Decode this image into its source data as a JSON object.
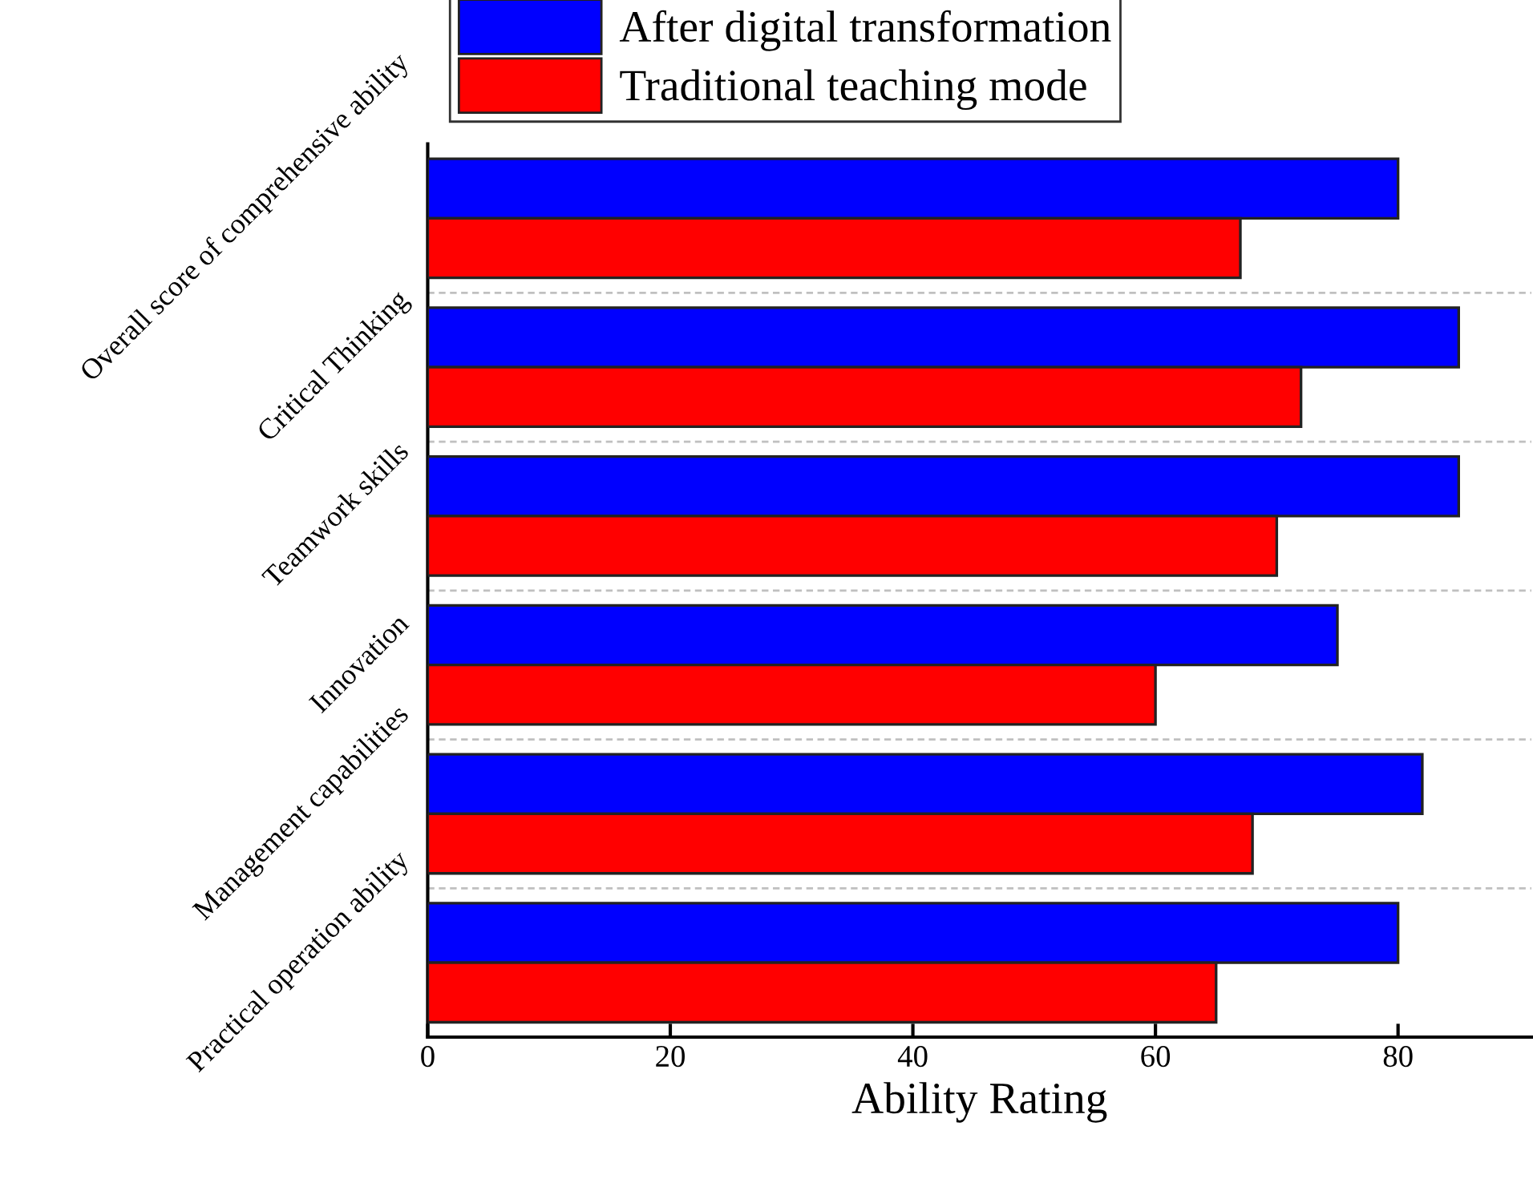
{
  "chart_data": {
    "type": "bar",
    "orientation": "horizontal",
    "xlabel": "Ability Rating",
    "categories": [
      "Overall score of comprehensive ability",
      "Critical Thinking",
      "Teamwork skills",
      "Innovation",
      "Management capabilities",
      "Practical operation ability"
    ],
    "series": [
      {
        "name": "After digital transformation",
        "color": "#0000ff",
        "values": [
          80,
          85,
          85,
          75,
          82,
          80
        ]
      },
      {
        "name": "Traditional teaching mode",
        "color": "#ff0000",
        "values": [
          67,
          72,
          70,
          60,
          68,
          65
        ]
      }
    ],
    "xlim": [
      0,
      91
    ],
    "xticks": [
      0,
      20,
      40,
      60,
      80
    ],
    "grid": "y",
    "legend": "top"
  }
}
